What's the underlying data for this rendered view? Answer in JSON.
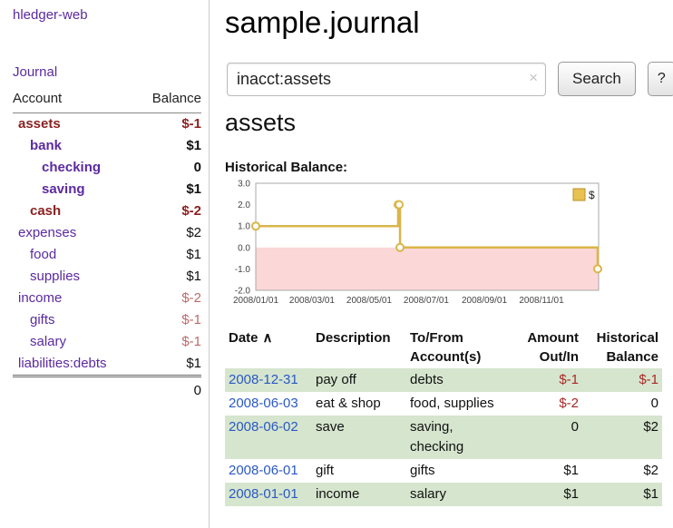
{
  "brand": "hledger-web",
  "sidebar": {
    "journal_label": "Journal",
    "header": {
      "account": "Account",
      "balance": "Balance"
    },
    "accounts": [
      {
        "name": "assets",
        "balance": "$-1",
        "depth": 0,
        "style": "sn"
      },
      {
        "name": "bank",
        "balance": "$1",
        "depth": 1,
        "style": "sp"
      },
      {
        "name": "checking",
        "balance": "0",
        "depth": 2,
        "style": "sp"
      },
      {
        "name": "saving",
        "balance": "$1",
        "depth": 2,
        "style": "sp"
      },
      {
        "name": "cash",
        "balance": "$-2",
        "depth": 1,
        "style": "sn"
      },
      {
        "name": "expenses",
        "balance": "$2",
        "depth": 0,
        "style": "p"
      },
      {
        "name": "food",
        "balance": "$1",
        "depth": 1,
        "style": "p"
      },
      {
        "name": "supplies",
        "balance": "$1",
        "depth": 1,
        "style": "p"
      },
      {
        "name": "income",
        "balance": "$-2",
        "depth": 0,
        "style": "n"
      },
      {
        "name": "gifts",
        "balance": "$-1",
        "depth": 1,
        "style": "n"
      },
      {
        "name": "salary",
        "balance": "$-1",
        "depth": 1,
        "style": "n"
      },
      {
        "name": "liabilities:debts",
        "balance": "$1",
        "depth": 0,
        "style": "p"
      }
    ],
    "total": "0"
  },
  "header": {
    "title": "sample.journal"
  },
  "search": {
    "value": "inacct:assets",
    "clear_icon": "×",
    "submit_label": "Search",
    "help_label": "?"
  },
  "account_page": {
    "title": "assets",
    "chart_heading": "Historical Balance:"
  },
  "chart_data": {
    "type": "line",
    "title": "Historical Balance",
    "ylim": [
      -2,
      3
    ],
    "ytick_labels": [
      "3.0",
      "2.0",
      "1.0",
      "0.0",
      "-1.0",
      "-2.0"
    ],
    "x_range": [
      "2008-01-01",
      "2009-01-01"
    ],
    "xtick_labels": [
      "2008/01/01",
      "2008/03/01",
      "2008/05/01",
      "2008/07/01",
      "2008/09/01",
      "2008/11/01"
    ],
    "series": [
      {
        "name": "$",
        "step": true,
        "points": [
          [
            "2008-01-01",
            1
          ],
          [
            "2008-06-01",
            2
          ],
          [
            "2008-06-02",
            2
          ],
          [
            "2008-06-03",
            0
          ],
          [
            "2008-12-31",
            -1
          ]
        ]
      }
    ],
    "legend_position": "top-right",
    "grid": false,
    "line_color": "#d9b64a",
    "marker_fill": "#ffffff",
    "legend_swatch_color": "#e8c152",
    "legend_swatch_border": "#b89323",
    "negative_region_color": "#fbd7d7",
    "plot_border_color": "#aaaaaa"
  },
  "register": {
    "headers": {
      "date": "Date",
      "sort_indicator": "∧",
      "description": "Description",
      "account_line1": "To/From",
      "account_line2": "Account(s)",
      "amount_line1": "Amount",
      "amount_line2": "Out/In",
      "balance_line1": "Historical",
      "balance_line2": "Balance"
    },
    "rows": [
      {
        "date": "2008-12-31",
        "description": "pay off",
        "accounts": "debts",
        "amount": "$-1",
        "balance": "$-1"
      },
      {
        "date": "2008-06-03",
        "description": "eat & shop",
        "accounts": "food, supplies",
        "amount": "$-2",
        "balance": "0"
      },
      {
        "date": "2008-06-02",
        "description": "save",
        "accounts": "saving, checking",
        "amount": "0",
        "balance": "$2"
      },
      {
        "date": "2008-06-01",
        "description": "gift",
        "accounts": "gifts",
        "amount": "$1",
        "balance": "$2"
      },
      {
        "date": "2008-01-01",
        "description": "income",
        "accounts": "salary",
        "amount": "$1",
        "balance": "$1"
      }
    ]
  }
}
